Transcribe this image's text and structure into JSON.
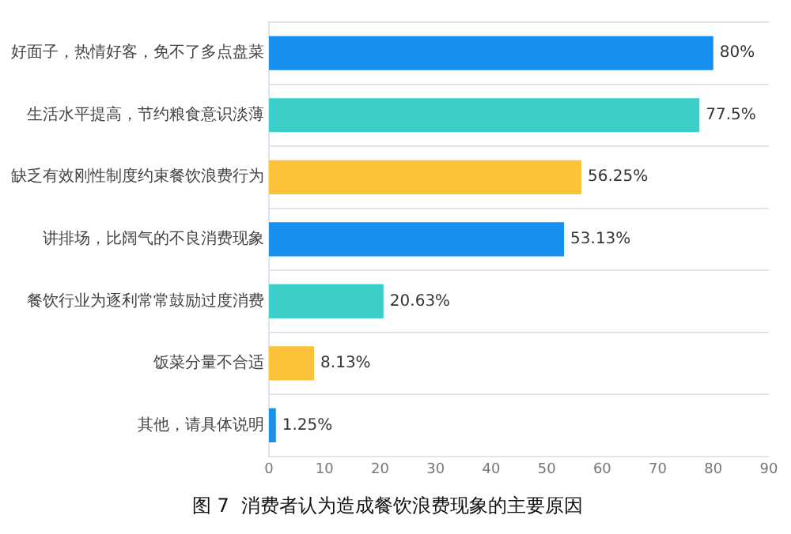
{
  "chart_data": {
    "type": "bar",
    "orientation": "horizontal",
    "title": "图 7  消费者认为造成餐饮浪费现象的主要原因",
    "categories": [
      "好面子，热情好客，免不了多点盘菜",
      "生活水平提高，节约粮食意识淡薄",
      "缺乏有效刚性制度约束餐饮浪费行为",
      "讲排场，比阔气的不良消费现象",
      "餐饮行业为逐利常常鼓励过度消费",
      "饭菜分量不合适",
      "其他，请具体说明"
    ],
    "values": [
      80,
      77.5,
      56.25,
      53.13,
      20.63,
      8.13,
      1.25
    ],
    "value_labels": [
      "80%",
      "77.5%",
      "56.25%",
      "53.13%",
      "20.63%",
      "8.13%",
      "1.25%"
    ],
    "colors": [
      "#1890f0",
      "#3ccfca",
      "#fcc33a",
      "#1890f0",
      "#3ccfca",
      "#fcc33a",
      "#1890f0"
    ],
    "xlim": [
      0,
      90
    ],
    "xticks": [
      0,
      10,
      20,
      30,
      40,
      50,
      60,
      70,
      80,
      90
    ],
    "grid": "y",
    "legend": false
  }
}
